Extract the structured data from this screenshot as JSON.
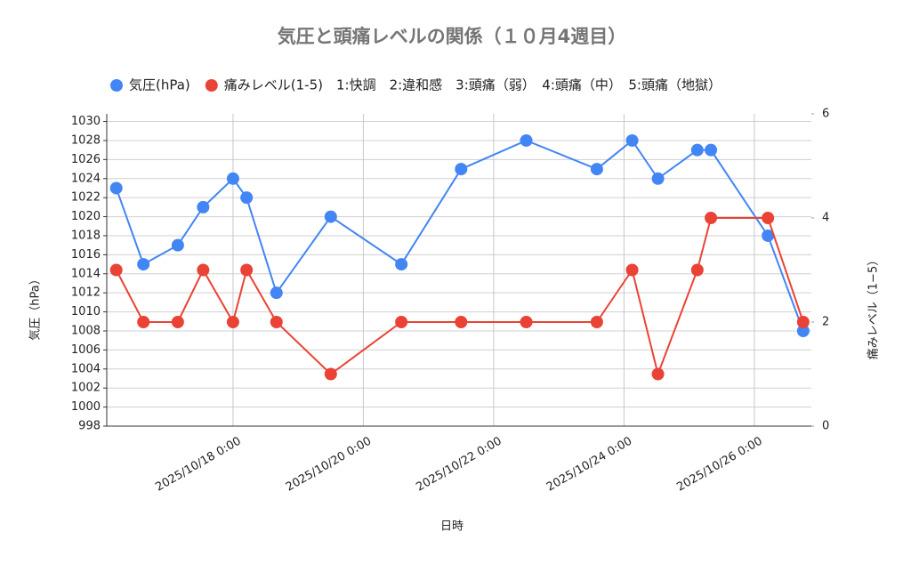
{
  "chart_data": {
    "type": "line",
    "title": "気圧と頭痛レベルの関係（１０月4週目）",
    "x_label": "日時",
    "y_label": "気圧（hPa）",
    "y2_label": "痛みレベル（1−5）",
    "x": [
      "2025/10/16 5:00",
      "2025/10/16 15:00",
      "2025/10/17 3:40",
      "2025/10/17 13:00",
      "2025/10/18 0:00",
      "2025/10/18 5:00",
      "2025/10/18 16:00",
      "2025/10/19 12:00",
      "2025/10/20 14:00",
      "2025/10/21 12:00",
      "2025/10/22 12:00",
      "2025/10/23 14:00",
      "2025/10/24 3:00",
      "2025/10/24 12:30",
      "2025/10/25 3:00",
      "2025/10/25 8:00",
      "2025/10/26 5:00",
      "2025/10/26 18:00"
    ],
    "series": [
      {
        "name": "気圧(hPa)",
        "color": "#4285f4",
        "values": [
          1023,
          1015,
          1017,
          1021,
          1024,
          1022,
          1012,
          1020,
          1015,
          1025,
          1028,
          1025,
          1028,
          1024,
          1027,
          1027,
          1018,
          1008
        ]
      },
      {
        "name": "痛みレベル(1-5)　1:快調　2:違和感　3:頭痛（弱）　4:頭痛（中）　5:頭痛（地獄）",
        "color": "#ea4335",
        "axis": "y2",
        "values": [
          3,
          2,
          2,
          3,
          2,
          3,
          2,
          1,
          2,
          2,
          2,
          2,
          3,
          1,
          3,
          4,
          4,
          2
        ]
      }
    ],
    "xlim": [
      "2025/10/16 1:30",
      "2025/10/26 21:00"
    ],
    "xticks": [
      "2025/10/18 0:00",
      "2025/10/20 0:00",
      "2025/10/22 0:00",
      "2025/10/24 0:00",
      "2025/10/26 0:00"
    ],
    "ylim": [
      998,
      1030.8
    ],
    "yticks": [
      998,
      1000,
      1002,
      1004,
      1006,
      1008,
      1010,
      1012,
      1014,
      1016,
      1018,
      1020,
      1022,
      1024,
      1026,
      1028,
      1030
    ],
    "y2lim": [
      0,
      6
    ],
    "y2ticks": [
      0,
      2,
      4,
      6
    ],
    "grid": true,
    "legend": "top"
  }
}
